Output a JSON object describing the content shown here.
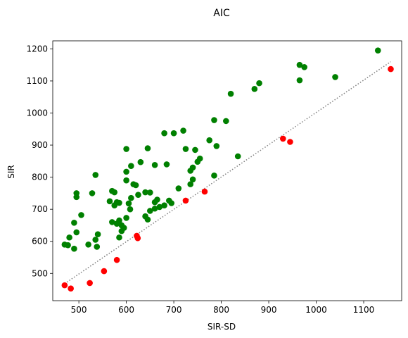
{
  "chart_data": {
    "type": "scatter",
    "title": "AIC",
    "xlabel": "SIR-SD",
    "ylabel": "SIR",
    "xlim": [
      445,
      1180
    ],
    "ylim": [
      415,
      1225
    ],
    "xticks": [
      500,
      600,
      700,
      800,
      900,
      1000,
      1100
    ],
    "yticks": [
      500,
      600,
      700,
      800,
      900,
      1000,
      1100,
      1200
    ],
    "grid": false,
    "reference_line": {
      "style": "dotted",
      "color": "#808080",
      "from": [
        470,
        468
      ],
      "to": [
        1157,
        1160
      ]
    },
    "series": [
      {
        "color": "#008000",
        "points": [
          [
            1130,
            1195
          ],
          [
            965,
            1150
          ],
          [
            975,
            1143
          ],
          [
            1040,
            1112
          ],
          [
            965,
            1102
          ],
          [
            880,
            1093
          ],
          [
            870,
            1075
          ],
          [
            820,
            1060
          ],
          [
            785,
            978
          ],
          [
            810,
            975
          ],
          [
            720,
            945
          ],
          [
            680,
            937
          ],
          [
            700,
            937
          ],
          [
            775,
            915
          ],
          [
            790,
            897
          ],
          [
            645,
            890
          ],
          [
            600,
            888
          ],
          [
            725,
            888
          ],
          [
            745,
            885
          ],
          [
            835,
            865
          ],
          [
            755,
            858
          ],
          [
            750,
            848
          ],
          [
            630,
            847
          ],
          [
            685,
            840
          ],
          [
            660,
            838
          ],
          [
            610,
            835
          ],
          [
            740,
            830
          ],
          [
            735,
            820
          ],
          [
            600,
            817
          ],
          [
            535,
            807
          ],
          [
            785,
            805
          ],
          [
            740,
            793
          ],
          [
            600,
            790
          ],
          [
            615,
            778
          ],
          [
            620,
            775
          ],
          [
            735,
            778
          ],
          [
            710,
            765
          ],
          [
            570,
            757
          ],
          [
            575,
            753
          ],
          [
            495,
            750
          ],
          [
            528,
            750
          ],
          [
            640,
            753
          ],
          [
            650,
            752
          ],
          [
            495,
            738
          ],
          [
            625,
            745
          ],
          [
            610,
            735
          ],
          [
            565,
            725
          ],
          [
            580,
            722
          ],
          [
            605,
            718
          ],
          [
            660,
            722
          ],
          [
            690,
            727
          ],
          [
            665,
            730
          ],
          [
            585,
            720
          ],
          [
            695,
            719
          ],
          [
            575,
            712
          ],
          [
            680,
            712
          ],
          [
            670,
            707
          ],
          [
            660,
            702
          ],
          [
            608,
            700
          ],
          [
            650,
            695
          ],
          [
            505,
            682
          ],
          [
            640,
            678
          ],
          [
            600,
            673
          ],
          [
            570,
            660
          ],
          [
            585,
            665
          ],
          [
            580,
            655
          ],
          [
            590,
            650
          ],
          [
            645,
            668
          ],
          [
            595,
            642
          ],
          [
            590,
            632
          ],
          [
            490,
            658
          ],
          [
            495,
            628
          ],
          [
            540,
            622
          ],
          [
            480,
            612
          ],
          [
            585,
            612
          ],
          [
            535,
            605
          ],
          [
            470,
            590
          ],
          [
            520,
            590
          ],
          [
            477,
            588
          ],
          [
            538,
            583
          ],
          [
            490,
            577
          ]
        ]
      },
      {
        "color": "#ff0000",
        "points": [
          [
            1157,
            1137
          ],
          [
            930,
            920
          ],
          [
            945,
            910
          ],
          [
            765,
            755
          ],
          [
            725,
            727
          ],
          [
            622,
            617
          ],
          [
            624,
            610
          ],
          [
            580,
            542
          ],
          [
            553,
            507
          ],
          [
            523,
            470
          ],
          [
            470,
            463
          ],
          [
            483,
            453
          ]
        ]
      }
    ]
  }
}
